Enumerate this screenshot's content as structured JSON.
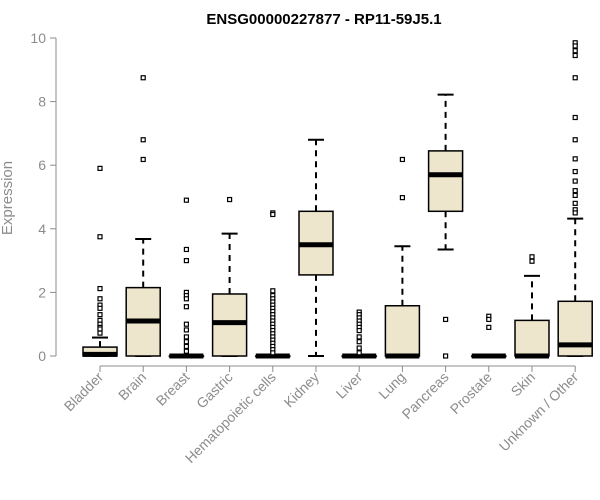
{
  "chart_data": {
    "type": "box",
    "title": "ENSG00000227877 - RP11-59J5.1",
    "xlabel": "",
    "ylabel": "Expression",
    "ylim": [
      0,
      10
    ],
    "yticks": [
      0,
      2,
      4,
      6,
      8,
      10
    ],
    "ytick_labels": [
      "0",
      "2",
      "4",
      "6",
      "8",
      "10"
    ],
    "grid": false,
    "box_fill": "#ede5cc",
    "box_stroke": "#000000",
    "categories": [
      "Bladder",
      "Brain",
      "Breast",
      "Gastric",
      "Hematopoietic cells",
      "Kidney",
      "Liver",
      "Lung",
      "Pancreas",
      "Prostate",
      "Skin",
      "Unknown / Other"
    ],
    "boxes": [
      {
        "whisker_low": 0,
        "q1": 0,
        "median": 0.05,
        "q3": 0.28,
        "whisker_high": 0.58,
        "outliers": [
          5.9,
          3.75,
          2.12,
          1.8,
          1.6,
          1.5,
          1.3,
          1.12,
          1.0,
          0.9,
          0.85,
          0.72
        ]
      },
      {
        "whisker_low": 0,
        "q1": 0,
        "median": 1.1,
        "q3": 2.15,
        "whisker_high": 3.68,
        "outliers": [
          8.75,
          6.8,
          6.18
        ]
      },
      {
        "whisker_low": 0,
        "q1": 0,
        "median": 0,
        "q3": 0,
        "whisker_high": 0,
        "outliers": [
          4.9,
          3.35,
          3.0,
          2.0,
          1.9,
          1.8,
          1.55,
          1.0,
          0.82,
          0.6,
          0.45,
          0.3,
          0.15
        ]
      },
      {
        "whisker_low": 0,
        "q1": 0,
        "median": 1.05,
        "q3": 1.95,
        "whisker_high": 3.85,
        "outliers": [
          4.92
        ]
      },
      {
        "whisker_low": 0,
        "q1": 0,
        "median": 0,
        "q3": 0,
        "whisker_high": 0,
        "outliers": [
          4.5,
          4.45,
          2.05,
          1.9,
          1.8,
          1.7,
          1.6,
          1.5,
          1.4,
          1.3,
          1.2,
          1.1,
          1.0,
          0.9,
          0.8,
          0.7,
          0.6,
          0.5,
          0.4,
          0.3,
          0.2,
          0.1
        ]
      },
      {
        "whisker_low": 0,
        "q1": 2.55,
        "median": 3.5,
        "q3": 4.55,
        "whisker_high": 6.8,
        "outliers": []
      },
      {
        "whisker_low": 0,
        "q1": 0,
        "median": 0,
        "q3": 0,
        "whisker_high": 0,
        "outliers": [
          1.38,
          1.3,
          1.2,
          1.1,
          1.0,
          0.9,
          0.8,
          0.6,
          0.45,
          0.25,
          0.1
        ]
      },
      {
        "whisker_low": 0,
        "q1": 0,
        "median": 0,
        "q3": 1.58,
        "whisker_high": 3.45,
        "outliers": [
          6.18,
          4.98
        ]
      },
      {
        "whisker_low": 3.35,
        "q1": 4.55,
        "median": 5.7,
        "q3": 6.45,
        "whisker_high": 8.22,
        "outliers": [
          1.15,
          0
        ]
      },
      {
        "whisker_low": 0,
        "q1": 0,
        "median": 0,
        "q3": 0,
        "whisker_high": 0,
        "outliers": [
          1.25,
          1.15,
          0.9
        ]
      },
      {
        "whisker_low": 0,
        "q1": 0,
        "median": 0,
        "q3": 1.12,
        "whisker_high": 2.52,
        "outliers": [
          3.12,
          2.98
        ]
      },
      {
        "whisker_low": 0,
        "q1": 0,
        "median": 0.35,
        "q3": 1.72,
        "whisker_high": 4.32,
        "outliers": [
          9.85,
          9.75,
          9.6,
          9.45,
          8.75,
          7.5,
          6.8,
          6.2,
          5.8,
          5.5,
          5.2,
          5.05,
          4.8,
          4.6,
          4.5
        ]
      }
    ]
  }
}
